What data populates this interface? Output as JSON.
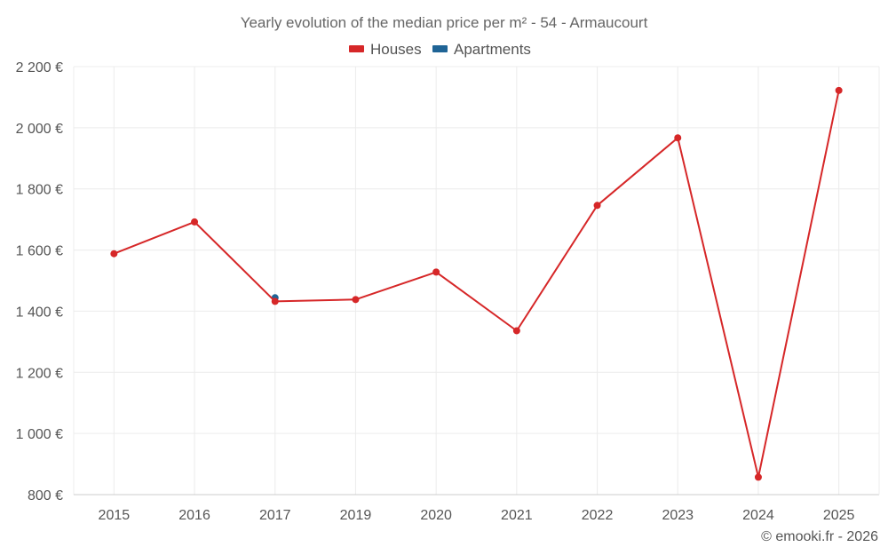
{
  "chart_data": {
    "type": "line",
    "title": "Yearly evolution of the median price per m² - 54 - Armaucourt",
    "categories": [
      "2015",
      "2016",
      "2017",
      "2019",
      "2020",
      "2021",
      "2022",
      "2023",
      "2024",
      "2025"
    ],
    "series": [
      {
        "name": "Houses",
        "color": "#d62728",
        "values": [
          1588,
          1692,
          1432,
          1438,
          1528,
          1336,
          1746,
          1967,
          857,
          2122
        ]
      },
      {
        "name": "Apartments",
        "color": "#1f6496",
        "values": [
          null,
          null,
          1444,
          null,
          null,
          null,
          null,
          null,
          null,
          null
        ]
      }
    ],
    "ylim": [
      800,
      2200
    ],
    "yticks": [
      800,
      1000,
      1200,
      1400,
      1600,
      1800,
      2000,
      2200
    ],
    "ytick_labels": [
      "800 €",
      "1 000 €",
      "1 200 €",
      "1 400 €",
      "1 600 €",
      "1 800 €",
      "2 000 €",
      "2 200 €"
    ],
    "xlabel": "",
    "ylabel": "",
    "grid": true,
    "legend_position": "top-center"
  },
  "credit": "© emooki.fr - 2026"
}
